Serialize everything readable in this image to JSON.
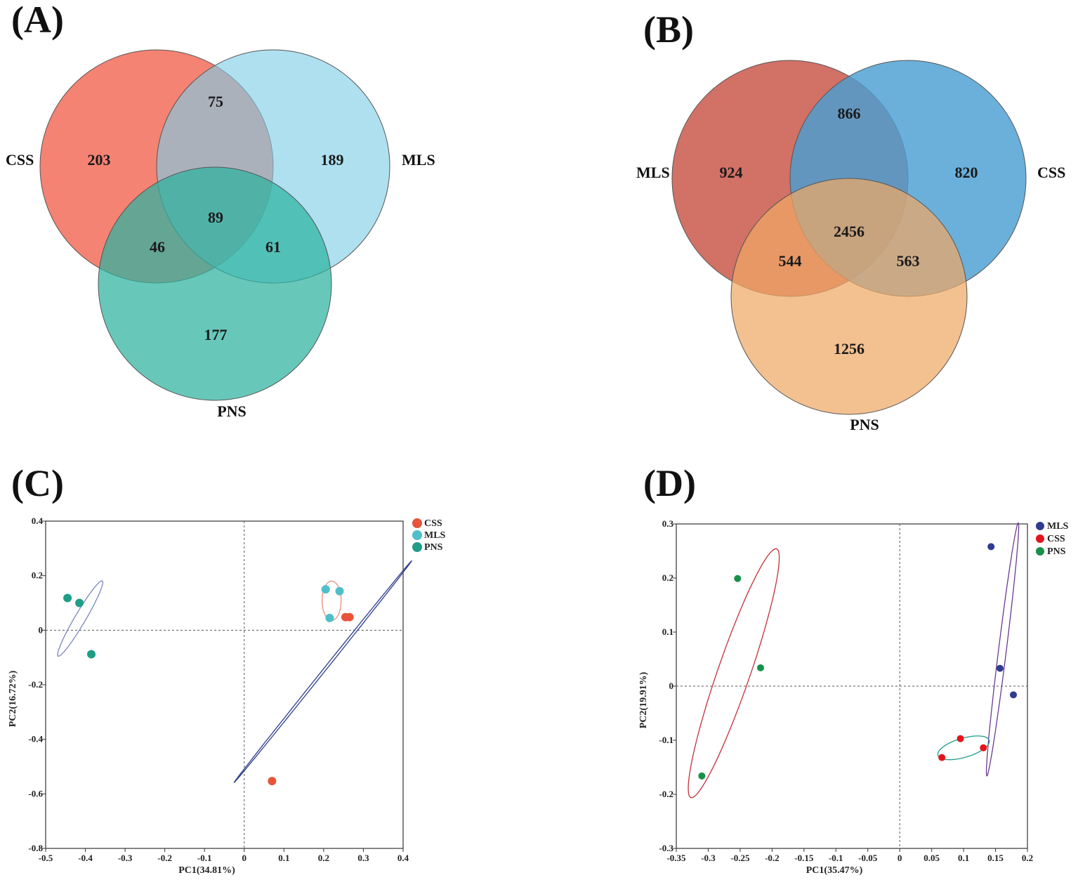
{
  "panels": {
    "A": "(A)",
    "B": "(B)",
    "C": "(C)",
    "D": "(D)"
  },
  "chart_data": [
    {
      "id": "A",
      "type": "venn",
      "sets": [
        {
          "name": "CSS",
          "color": "#f47c6c"
        },
        {
          "name": "MLS",
          "color": "#7ecde6"
        },
        {
          "name": "PNS",
          "color": "#2db3a0"
        }
      ],
      "regions": {
        "only_1": 203,
        "only_2": 189,
        "only_3": 177,
        "1_2": 75,
        "1_3": 46,
        "2_3": 61,
        "all": 89
      }
    },
    {
      "id": "B",
      "type": "venn",
      "sets": [
        {
          "name": "MLS",
          "color": "#d0695e"
        },
        {
          "name": "CSS",
          "color": "#4a9fd2"
        },
        {
          "name": "PNS",
          "color": "#efa865"
        }
      ],
      "regions": {
        "only_1": 924,
        "only_2": 820,
        "only_3": 1256,
        "1_2": 866,
        "1_3": 544,
        "2_3": 563,
        "all": 2456
      }
    },
    {
      "id": "C",
      "type": "scatter",
      "xlabel": "PC1(34.81%)",
      "ylabel": "PC2(16.72%)",
      "xlim": [
        -0.5,
        0.4
      ],
      "ylim": [
        -0.8,
        0.4
      ],
      "xticks": [
        -0.5,
        -0.4,
        -0.3,
        -0.2,
        -0.1,
        0,
        0.1,
        0.2,
        0.3,
        0.4
      ],
      "yticks": [
        -0.8,
        -0.6,
        -0.4,
        -0.2,
        0,
        0.2,
        0.4
      ],
      "xtick_labels": [
        "-0.5",
        "-0.4",
        "-0.3",
        "-0.2",
        "-0.1",
        "0",
        "0.1",
        "0.2",
        "0.3",
        "0.4"
      ],
      "ytick_labels": [
        "-0.8",
        "-0.6",
        "-0.4",
        "-0.2",
        "0",
        "0.2",
        "0.4"
      ],
      "legend_position": "top-right",
      "series": [
        {
          "name": "CSS",
          "color": "#e8533a",
          "points": [
            [
              0.255,
              0.048
            ],
            [
              0.265,
              0.048
            ],
            [
              0.07,
              -0.553
            ]
          ],
          "ellipse_color": "#2c3d8a",
          "ellipse": {
            "cx": 0.198,
            "cy": -0.152,
            "rx": 0.4645,
            "ry": 0.0036,
            "angle_deg": 61.2
          }
        },
        {
          "name": "MLS",
          "color": "#4fbfcc",
          "points": [
            [
              0.205,
              0.15
            ],
            [
              0.24,
              0.143
            ],
            [
              0.215,
              0.045
            ]
          ],
          "ellipse_color": "#e8907a",
          "ellipse": {
            "cx": 0.22,
            "cy": 0.108,
            "rx": 0.024,
            "ry": 0.072,
            "angle_deg": 0
          }
        },
        {
          "name": "PNS",
          "color": "#1f9e85",
          "points": [
            [
              -0.445,
              0.118
            ],
            [
              -0.415,
              0.1
            ],
            [
              -0.385,
              -0.088
            ]
          ],
          "ellipse_color": "#7a85c0",
          "ellipse": {
            "cx": -0.413,
            "cy": 0.043,
            "rx": 0.1488,
            "ry": 0.0146,
            "angle_deg": 68.2
          }
        }
      ]
    },
    {
      "id": "D",
      "type": "scatter",
      "xlabel": "PC1(35.47%)",
      "ylabel": "PC2(19.91%)",
      "xlim": [
        -0.35,
        0.2
      ],
      "ylim": [
        -0.3,
        0.3
      ],
      "xticks": [
        -0.35,
        -0.3,
        -0.25,
        -0.2,
        -0.15,
        -0.1,
        -0.05,
        0,
        0.05,
        0.1,
        0.15,
        0.2
      ],
      "yticks": [
        -0.3,
        -0.2,
        -0.1,
        0,
        0.1,
        0.2,
        0.3
      ],
      "xtick_labels": [
        "-0.35",
        "-0.3",
        "-0.25",
        "-0.2",
        "-0.15",
        "-0.1",
        "-0.05",
        "0",
        "0.05",
        "0.1",
        "0.15",
        "0.2"
      ],
      "ytick_labels": [
        "-0.3",
        "-0.2",
        "-0.1",
        "0",
        "0.1",
        "0.2",
        "0.3"
      ],
      "legend_position": "top-right",
      "series": [
        {
          "name": "MLS",
          "color": "#2f3c8f",
          "points": [
            [
              0.143,
              0.258
            ],
            [
              0.157,
              0.033
            ],
            [
              0.178,
              -0.016
            ]
          ],
          "ellipse_color": "#6a3a92",
          "ellipse": {
            "cx": 0.161,
            "cy": 0.068,
            "rx": 0.2353,
            "ry": 0.0061,
            "angle_deg": 84.0
          }
        },
        {
          "name": "CSS",
          "color": "#e5141c",
          "points": [
            [
              0.095,
              -0.097
            ],
            [
              0.066,
              -0.132
            ],
            [
              0.131,
              -0.114
            ]
          ],
          "ellipse_color": "#1f9e8a",
          "ellipse": {
            "cx": 0.1,
            "cy": -0.114,
            "rx": 0.0425,
            "ry": 0.0175,
            "angle_deg": 20.0
          }
        },
        {
          "name": "PNS",
          "color": "#18904a",
          "points": [
            [
              -0.254,
              0.199
            ],
            [
              -0.218,
              0.034
            ],
            [
              -0.31,
              -0.166
            ]
          ],
          "ellipse_color": "#c4303a",
          "ellipse": {
            "cx": -0.26,
            "cy": 0.024,
            "rx": 0.2397,
            "ry": 0.0258,
            "angle_deg": 73.8
          }
        }
      ]
    }
  ]
}
